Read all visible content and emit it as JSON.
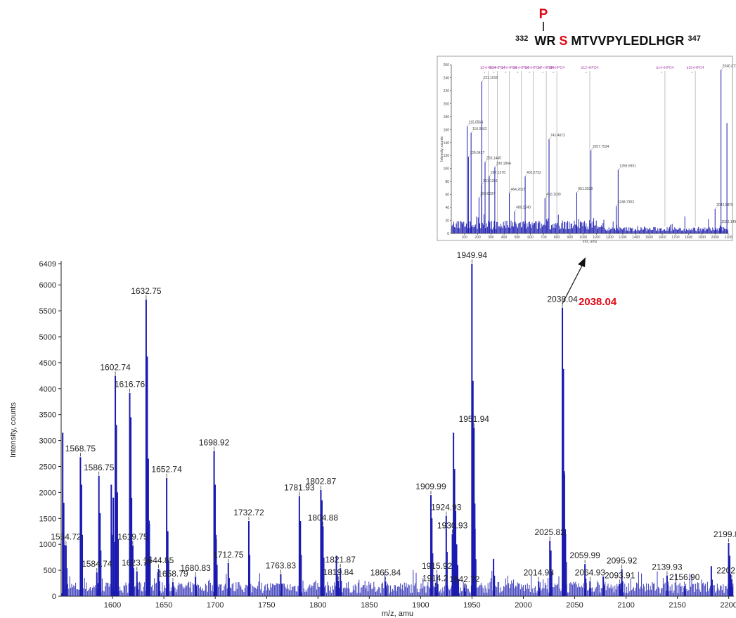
{
  "peptide": {
    "phospho_mark": "P",
    "start_pos": "332",
    "seq_before": "WR",
    "mod_residue": "S",
    "seq_after": "MTVVPYLEDLHGR",
    "end_pos": "347"
  },
  "callout": {
    "label": "2038.04",
    "color": "#e30613"
  },
  "colors": {
    "series": "#1a1ab0",
    "accent": "#e30613",
    "axis": "#222222"
  },
  "chart_data": [
    {
      "type": "line",
      "title": "",
      "xlabel": "m/z, amu",
      "ylabel": "Intensity, counts",
      "xlim": [
        1550,
        2205
      ],
      "ylim": [
        0,
        6409
      ],
      "xticks": [
        1600,
        1650,
        1700,
        1750,
        1800,
        1850,
        1900,
        1950,
        2000,
        2050,
        2100,
        2150,
        2200
      ],
      "yticks": [
        0,
        500,
        1000,
        1500,
        2000,
        2500,
        3000,
        3500,
        4000,
        4500,
        5000,
        5500,
        6000,
        6409
      ],
      "grid": false,
      "peaks": [
        {
          "x": 1551.5,
          "y": 3150,
          "label": ""
        },
        {
          "x": 1552.5,
          "y": 1800,
          "label": ""
        },
        {
          "x": 1554.72,
          "y": 980,
          "label": "1554.72"
        },
        {
          "x": 1568.75,
          "y": 2680,
          "label": "1568.75"
        },
        {
          "x": 1569.8,
          "y": 2150,
          "label": ""
        },
        {
          "x": 1584.74,
          "y": 460,
          "label": "1584.74"
        },
        {
          "x": 1586.75,
          "y": 2320,
          "label": "1586.75"
        },
        {
          "x": 1587.8,
          "y": 1600,
          "label": ""
        },
        {
          "x": 1598.8,
          "y": 2150,
          "label": ""
        },
        {
          "x": 1600.8,
          "y": 1900,
          "label": ""
        },
        {
          "x": 1602.74,
          "y": 4250,
          "label": "1602.74"
        },
        {
          "x": 1603.7,
          "y": 3300,
          "label": ""
        },
        {
          "x": 1604.7,
          "y": 2000,
          "label": ""
        },
        {
          "x": 1616.76,
          "y": 3920,
          "label": "1616.76"
        },
        {
          "x": 1617.8,
          "y": 3450,
          "label": ""
        },
        {
          "x": 1619.75,
          "y": 980,
          "label": "1619.75"
        },
        {
          "x": 1623.77,
          "y": 480,
          "label": "1623.77"
        },
        {
          "x": 1632.75,
          "y": 5720,
          "label": "1632.75"
        },
        {
          "x": 1633.8,
          "y": 4620,
          "label": ""
        },
        {
          "x": 1634.8,
          "y": 2650,
          "label": ""
        },
        {
          "x": 1635.8,
          "y": 1400,
          "label": ""
        },
        {
          "x": 1644.85,
          "y": 530,
          "label": "1644.85"
        },
        {
          "x": 1652.74,
          "y": 2280,
          "label": "1652.74"
        },
        {
          "x": 1653.8,
          "y": 1250,
          "label": ""
        },
        {
          "x": 1658.79,
          "y": 270,
          "label": "1658.79"
        },
        {
          "x": 1680.83,
          "y": 380,
          "label": "1680.83"
        },
        {
          "x": 1698.92,
          "y": 2800,
          "label": "1698.92"
        },
        {
          "x": 1699.9,
          "y": 2150,
          "label": ""
        },
        {
          "x": 1700.9,
          "y": 1100,
          "label": ""
        },
        {
          "x": 1712.75,
          "y": 640,
          "label": "1712.75"
        },
        {
          "x": 1732.72,
          "y": 1450,
          "label": "1732.72"
        },
        {
          "x": 1763.83,
          "y": 430,
          "label": "1763.83"
        },
        {
          "x": 1781.93,
          "y": 1930,
          "label": "1781.93"
        },
        {
          "x": 1782.9,
          "y": 1450,
          "label": ""
        },
        {
          "x": 1802.87,
          "y": 2050,
          "label": "1802.87"
        },
        {
          "x": 1803.9,
          "y": 1850,
          "label": ""
        },
        {
          "x": 1804.88,
          "y": 1350,
          "label": "1804.88"
        },
        {
          "x": 1818.0,
          "y": 780,
          "label": ""
        },
        {
          "x": 1819.84,
          "y": 300,
          "label": "1819.84"
        },
        {
          "x": 1821.87,
          "y": 540,
          "label": "1821.87"
        },
        {
          "x": 1865.84,
          "y": 290,
          "label": "1865.84"
        },
        {
          "x": 1909.99,
          "y": 1950,
          "label": "1909.99"
        },
        {
          "x": 1910.9,
          "y": 1500,
          "label": ""
        },
        {
          "x": 1914.2,
          "y": 180,
          "label": "1914.2"
        },
        {
          "x": 1915.92,
          "y": 420,
          "label": "1915.92"
        },
        {
          "x": 1924.93,
          "y": 1550,
          "label": "1924.93"
        },
        {
          "x": 1930.93,
          "y": 1200,
          "label": "1930.93"
        },
        {
          "x": 1932.0,
          "y": 3150,
          "label": ""
        },
        {
          "x": 1933.0,
          "y": 2450,
          "label": ""
        },
        {
          "x": 1934.0,
          "y": 1650,
          "label": ""
        },
        {
          "x": 1935.0,
          "y": 1000,
          "label": ""
        },
        {
          "x": 1936.0,
          "y": 600,
          "label": ""
        },
        {
          "x": 1942.72,
          "y": 160,
          "label": "1942.72"
        },
        {
          "x": 1949.94,
          "y": 6409,
          "label": "1949.94"
        },
        {
          "x": 1950.9,
          "y": 4150,
          "label": ""
        },
        {
          "x": 1951.94,
          "y": 3250,
          "label": "1951.94"
        },
        {
          "x": 1952.9,
          "y": 1300,
          "label": ""
        },
        {
          "x": 1971.0,
          "y": 720,
          "label": ""
        },
        {
          "x": 2014.93,
          "y": 290,
          "label": "2014.93"
        },
        {
          "x": 2025.82,
          "y": 1070,
          "label": "2025.82"
        },
        {
          "x": 2026.8,
          "y": 880,
          "label": ""
        },
        {
          "x": 2038.04,
          "y": 5560,
          "label": "2038.04"
        },
        {
          "x": 2039.0,
          "y": 4380,
          "label": ""
        },
        {
          "x": 2040.0,
          "y": 2350,
          "label": ""
        },
        {
          "x": 2041.0,
          "y": 1200,
          "label": ""
        },
        {
          "x": 2059.99,
          "y": 620,
          "label": "2059.99"
        },
        {
          "x": 2064.93,
          "y": 290,
          "label": "2064.93"
        },
        {
          "x": 2077.8,
          "y": 380,
          "label": ""
        },
        {
          "x": 2093.91,
          "y": 240,
          "label": "2093.91"
        },
        {
          "x": 2095.92,
          "y": 520,
          "label": "2095.92"
        },
        {
          "x": 2139.93,
          "y": 400,
          "label": "2139.93"
        },
        {
          "x": 2156.9,
          "y": 200,
          "label": "2156.90"
        },
        {
          "x": 2183.0,
          "y": 580,
          "label": ""
        },
        {
          "x": 2199.89,
          "y": 1030,
          "label": "2199.89"
        },
        {
          "x": 2200.9,
          "y": 780,
          "label": ""
        },
        {
          "x": 2202.89,
          "y": 330,
          "label": "2202.89"
        }
      ]
    },
    {
      "type": "line",
      "title": "",
      "xlabel": "m/z, amu",
      "ylabel": "Intensity, counts",
      "xlim": [
        0,
        2100
      ],
      "ylim": [
        0,
        260
      ],
      "xticks": [
        100,
        200,
        300,
        400,
        500,
        600,
        700,
        800,
        900,
        1000,
        1100,
        1200,
        1300,
        1400,
        1500,
        1600,
        1700,
        1800,
        1900,
        2000,
        2100
      ],
      "yticks": [
        0,
        20,
        40,
        60,
        80,
        100,
        120,
        140,
        160,
        180,
        200,
        220,
        240,
        260
      ],
      "fragment_labels": [
        "b2+HPO4",
        "b3+HPO4",
        "b4+HPO4",
        "b5+HPO4",
        "b6+HPO4",
        "b7+HPO4",
        "b8+HPO4",
        "b12+HPO4",
        "b14+HPO4",
        "b15+HPO4"
      ],
      "peaks": [
        {
          "x": 120,
          "y": 165,
          "label": "115.0564"
        },
        {
          "x": 150,
          "y": 155,
          "label": "116.0562"
        },
        {
          "x": 130,
          "y": 118,
          "label": "129.0427"
        },
        {
          "x": 231,
          "y": 234,
          "label": "231.1016"
        },
        {
          "x": 256,
          "y": 110,
          "label": "256.1445"
        },
        {
          "x": 288,
          "y": 88,
          "label": "287.1378"
        },
        {
          "x": 230,
          "y": 75,
          "label": "231.1251"
        },
        {
          "x": 210,
          "y": 55,
          "label": "283.0337"
        },
        {
          "x": 330,
          "y": 102,
          "label": "330.1864"
        },
        {
          "x": 440,
          "y": 62,
          "label": "464.2615"
        },
        {
          "x": 480,
          "y": 34,
          "label": "480.2540"
        },
        {
          "x": 560,
          "y": 88,
          "label": "402.2752"
        },
        {
          "x": 741,
          "y": 145,
          "label": "741.4072"
        },
        {
          "x": 710,
          "y": 54,
          "label": "410.1100"
        },
        {
          "x": 951,
          "y": 63,
          "label": "951.5029"
        },
        {
          "x": 1059,
          "y": 128,
          "label": "1057.7534"
        },
        {
          "x": 1265,
          "y": 98,
          "label": "1265.6931"
        },
        {
          "x": 1250,
          "y": 42,
          "label": "1248.7352"
        },
        {
          "x": 2045,
          "y": 252,
          "label": "2040.3775"
        },
        {
          "x": 2000,
          "y": 38,
          "label": "2042.5870"
        },
        {
          "x": 2038,
          "y": 12,
          "label": "2022.1495"
        },
        {
          "x": 2090,
          "y": 170,
          "label": ""
        }
      ]
    }
  ]
}
